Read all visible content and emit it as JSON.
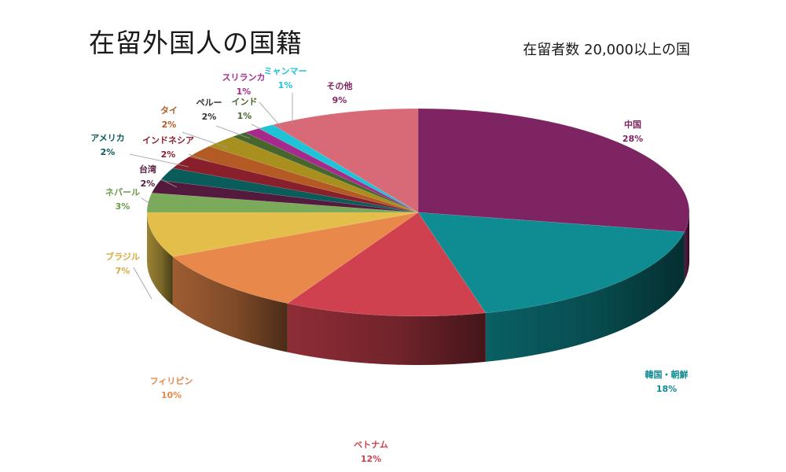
{
  "title": "在留外国人の国籍",
  "subtitle": "在留者数 20,000以上の国",
  "chart_data": {
    "type": "pie",
    "title": "在留外国人の国籍",
    "subtitle": "在留者数 20,000以上の国",
    "slices": [
      {
        "label": "中国",
        "value": 28,
        "pct": "28%",
        "color": "#7f2462"
      },
      {
        "label": "韓国・朝鮮",
        "value": 18,
        "pct": "18%",
        "color": "#0e8c92"
      },
      {
        "label": "ベトナム",
        "value": 12,
        "pct": "12%",
        "color": "#d0414f"
      },
      {
        "label": "フィリピン",
        "value": 10,
        "pct": "10%",
        "color": "#e8884a"
      },
      {
        "label": "ブラジル",
        "value": 7,
        "pct": "7%",
        "color": "#e3be4a"
      },
      {
        "label": "ネパール",
        "value": 3,
        "pct": "3%",
        "color": "#7aaa5a"
      },
      {
        "label": "台湾",
        "value": 2,
        "pct": "2%",
        "color": "#531a3e"
      },
      {
        "label": "アメリカ",
        "value": 2,
        "pct": "2%",
        "color": "#0a5c5a"
      },
      {
        "label": "インドネシア",
        "value": 2,
        "pct": "2%",
        "color": "#8a1f2c"
      },
      {
        "label": "タイ",
        "value": 2,
        "pct": "2%",
        "color": "#b45a24"
      },
      {
        "label": "ペルー",
        "value": 2,
        "pct": "2%",
        "color": "#a88f1e"
      },
      {
        "label": "インド",
        "value": 1,
        "pct": "1%",
        "color": "#46662d"
      },
      {
        "label": "スリランカ",
        "value": 1,
        "pct": "1%",
        "color": "#a62a8c"
      },
      {
        "label": "ミャンマー",
        "value": 1,
        "pct": "1%",
        "color": "#1fc3d6"
      },
      {
        "label": "その他",
        "value": 9,
        "pct": "9%",
        "color": "#d86a78"
      }
    ],
    "label_colors": {
      "中国": "#7f2462",
      "韓国・朝鮮": "#0e8c92",
      "ベトナム": "#d0414f",
      "フィリピン": "#e8884a",
      "ブラジル": "#d9a940",
      "ネパール": "#6a9a4a",
      "台湾": "#531a3e",
      "アメリカ": "#0a5c5a",
      "インドネシア": "#8a1f2c",
      "タイ": "#b45a24",
      "ペルー": "#333333",
      "インド": "#46662d",
      "スリランカ": "#a62a8c",
      "ミャンマー": "#1fc3d6",
      "その他": "#7f2462"
    },
    "style": "3d-tilted-pie"
  }
}
